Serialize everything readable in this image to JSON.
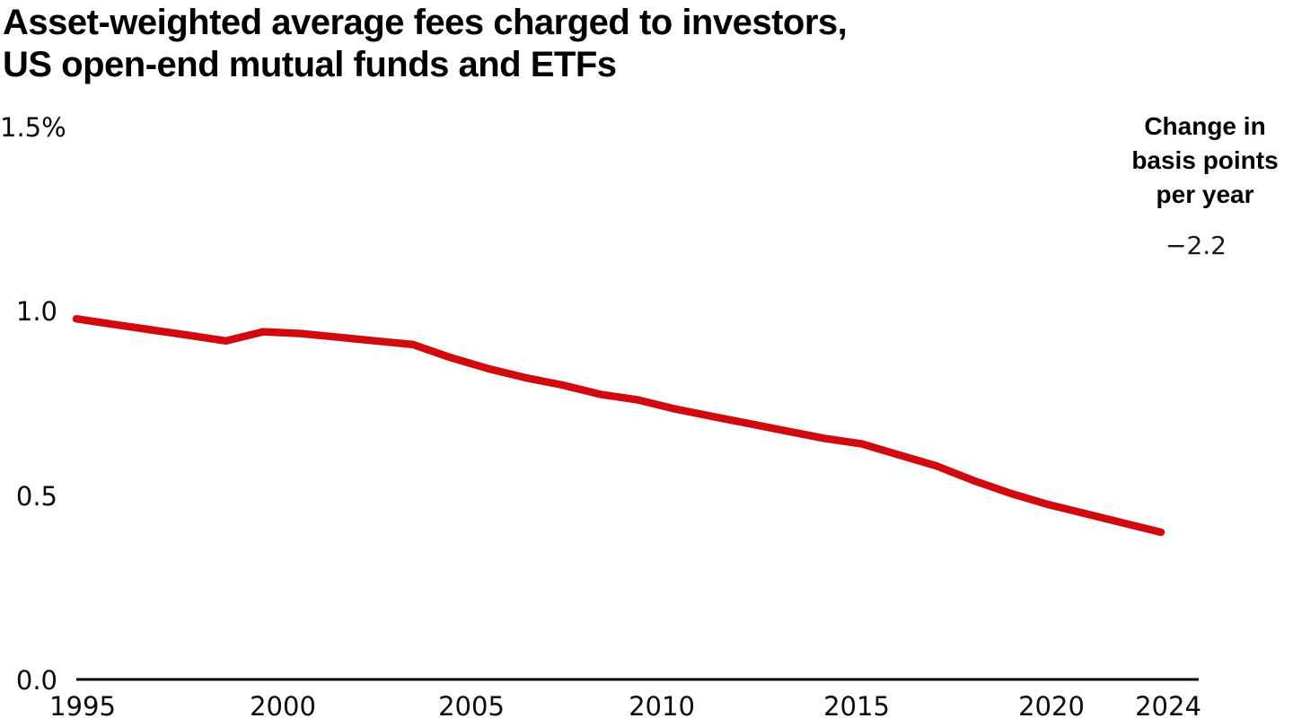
{
  "title": {
    "line1": "Asset-weighted average fees charged to investors,",
    "line2": "US open-end mutual funds and ETFs"
  },
  "annotation": {
    "heading_lines": [
      "Change in",
      "basis points",
      "per year"
    ],
    "value": "−2.2"
  },
  "chart_data": {
    "type": "line",
    "title": "Asset-weighted average fees charged to investors, US open-end mutual funds and ETFs",
    "xlabel": "",
    "ylabel": "",
    "unit": "percent",
    "x": [
      1995,
      1996,
      1997,
      1998,
      1999,
      2000,
      2001,
      2002,
      2003,
      2004,
      2005,
      2006,
      2007,
      2008,
      2009,
      2010,
      2011,
      2012,
      2013,
      2014,
      2015,
      2016,
      2017,
      2018,
      2019,
      2020,
      2021,
      2022,
      2023,
      2024
    ],
    "series": [
      {
        "name": "Asset-weighted average fee, US open-end mutual funds and ETFs (%)",
        "values": [
          0.98,
          0.965,
          0.95,
          0.935,
          0.92,
          0.945,
          0.94,
          0.93,
          0.92,
          0.91,
          0.875,
          0.845,
          0.82,
          0.8,
          0.775,
          0.76,
          0.735,
          0.715,
          0.695,
          0.675,
          0.655,
          0.64,
          0.61,
          0.58,
          0.54,
          0.505,
          0.475,
          0.45,
          0.425,
          0.4
        ]
      }
    ],
    "ylim": [
      0,
      1.5
    ],
    "xlim": [
      1995,
      2024
    ],
    "y_tick_labels": [
      "0.0",
      "0.5",
      "1.0",
      "1.5%"
    ],
    "x_tick_labels": [
      "1995",
      "2000",
      "2005",
      "2010",
      "2015",
      "2020",
      "2024"
    ],
    "grid": false,
    "legend": "none",
    "line_color": "#d00a0f",
    "axis_color": "#000000",
    "annotation_text": "Change in basis points per year −2.2"
  }
}
